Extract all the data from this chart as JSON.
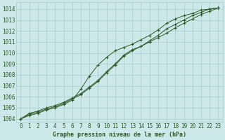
{
  "title": "Graphe pression niveau de la mer (hPa)",
  "background_color": "#cce8e8",
  "grid_color": "#aacccc",
  "line_color": "#2d5a27",
  "x_labels": [
    "0",
    "1",
    "2",
    "3",
    "4",
    "5",
    "6",
    "7",
    "8",
    "9",
    "10",
    "11",
    "12",
    "13",
    "14",
    "15",
    "16",
    "17",
    "18",
    "19",
    "20",
    "21",
    "22",
    "23"
  ],
  "ylim_min": 1003.7,
  "ylim_max": 1014.6,
  "yticks": [
    1004,
    1005,
    1006,
    1007,
    1008,
    1009,
    1010,
    1011,
    1012,
    1013,
    1014
  ],
  "line1": [
    1004.0,
    1004.5,
    1004.7,
    1005.0,
    1005.2,
    1005.5,
    1005.9,
    1006.3,
    1006.9,
    1007.5,
    1008.3,
    1009.0,
    1009.8,
    1010.3,
    1010.6,
    1011.0,
    1011.4,
    1011.8,
    1012.3,
    1012.7,
    1013.1,
    1013.5,
    1013.8,
    1014.1
  ],
  "line2": [
    1004.0,
    1004.4,
    1004.6,
    1004.9,
    1005.1,
    1005.4,
    1005.8,
    1006.2,
    1006.8,
    1007.4,
    1008.2,
    1008.9,
    1009.7,
    1010.2,
    1010.6,
    1011.1,
    1011.6,
    1012.2,
    1012.6,
    1013.0,
    1013.4,
    1013.7,
    1014.0,
    1014.1
  ],
  "line3": [
    1004.0,
    1004.3,
    1004.5,
    1004.8,
    1005.0,
    1005.3,
    1005.7,
    1006.7,
    1007.9,
    1008.9,
    1009.6,
    1010.2,
    1010.5,
    1010.8,
    1011.2,
    1011.6,
    1012.1,
    1012.7,
    1013.1,
    1013.4,
    1013.6,
    1013.9,
    1014.0,
    1014.1
  ],
  "tick_fontsize": 5.5,
  "xlabel_fontsize": 6.0
}
